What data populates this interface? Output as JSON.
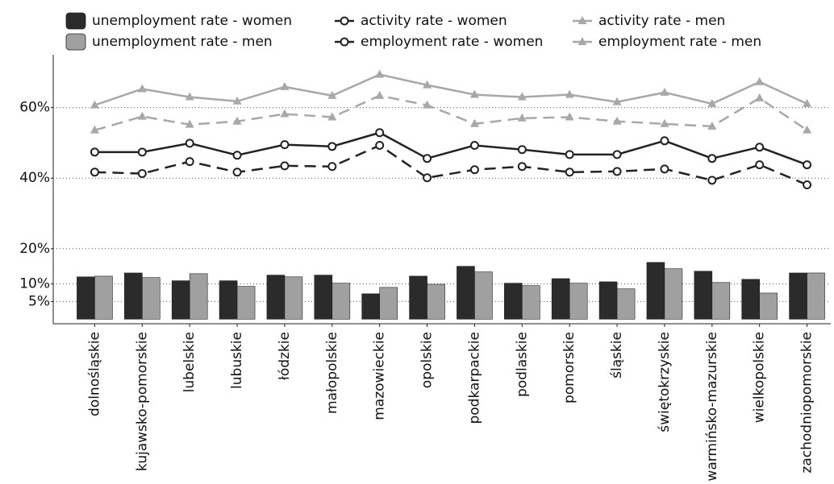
{
  "chart_data": {
    "type": "bar-line",
    "categories": [
      "dolnośląskie",
      "kujawsko-pomorskie",
      "lubelskie",
      "lubuskie",
      "łódzkie",
      "małopolskie",
      "mazowieckie",
      "opolskie",
      "podkarpackie",
      "podlaskie",
      "pomorskie",
      "śląskie",
      "świętokrzyskie",
      "warmińsko-mazurskie",
      "wielkopolskie",
      "zachodniopomorskie"
    ],
    "series": [
      {
        "name": "unemployment rate - women",
        "type": "bar",
        "color": "#2b2b2b",
        "values": [
          12.0,
          13.1,
          10.9,
          10.9,
          12.5,
          12.5,
          7.2,
          12.2,
          15.0,
          10.2,
          11.5,
          10.6,
          16.1,
          13.6,
          11.3,
          13.1
        ]
      },
      {
        "name": "unemployment rate - men",
        "type": "bar",
        "color": "#a0a0a0",
        "values": [
          12.2,
          11.8,
          12.9,
          9.3,
          12.0,
          10.2,
          9.0,
          9.9,
          13.4,
          9.5,
          10.2,
          8.6,
          14.3,
          10.4,
          7.4,
          13.1
        ]
      },
      {
        "name": "activity rate - women",
        "type": "line",
        "style": "solid",
        "marker": "circle",
        "color": "#222222",
        "values": [
          47.4,
          47.4,
          49.9,
          46.5,
          49.5,
          49.0,
          52.9,
          45.6,
          49.3,
          48.1,
          46.7,
          46.7,
          50.6,
          45.6,
          48.8,
          43.8
        ]
      },
      {
        "name": "employment rate - women",
        "type": "line",
        "style": "dashed",
        "marker": "circle",
        "color": "#222222",
        "values": [
          41.7,
          41.3,
          44.7,
          41.7,
          43.5,
          43.3,
          49.3,
          40.1,
          42.4,
          43.3,
          41.7,
          41.9,
          42.6,
          39.4,
          43.8,
          38.1
        ]
      },
      {
        "name": "activity rate - men",
        "type": "line",
        "style": "solid",
        "marker": "triangle",
        "color": "#a8a8a8",
        "values": [
          60.7,
          65.3,
          63.0,
          61.8,
          65.9,
          63.4,
          69.4,
          66.4,
          63.7,
          63.0,
          63.7,
          61.6,
          64.3,
          61.1,
          67.3,
          61.1
        ]
      },
      {
        "name": "employment rate - men",
        "type": "line",
        "style": "dashed",
        "marker": "triangle",
        "color": "#a8a8a8",
        "values": [
          53.6,
          57.5,
          55.2,
          56.1,
          58.2,
          57.3,
          63.4,
          60.7,
          55.4,
          57.0,
          57.3,
          56.1,
          55.4,
          54.7,
          62.7,
          53.6
        ]
      }
    ],
    "ylim": [
      -1.3,
      75
    ],
    "yticks": [
      {
        "value": 5,
        "label": "5%"
      },
      {
        "value": 10,
        "label": "10%"
      },
      {
        "value": 20,
        "label": "20%"
      },
      {
        "value": 40,
        "label": "40%"
      },
      {
        "value": 60,
        "label": "60%"
      }
    ],
    "grid": true
  }
}
